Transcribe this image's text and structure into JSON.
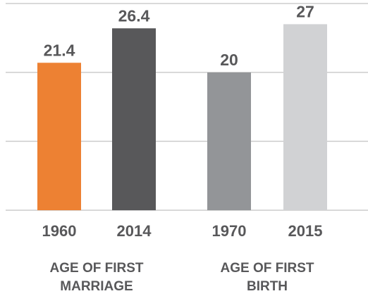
{
  "chart_data": {
    "type": "bar",
    "categories": [
      "1960",
      "2014",
      "1970",
      "2015"
    ],
    "values": [
      21.4,
      26.4,
      20,
      27
    ],
    "colors": [
      "#ed8133",
      "#58585a",
      "#939598",
      "#d1d2d4"
    ],
    "group_labels": [
      "AGE OF FIRST MARRIAGE",
      "AGE OF FIRST BIRTH"
    ],
    "ylim": [
      0,
      30
    ],
    "yticks": [
      0,
      10,
      20,
      30
    ],
    "grid": true
  }
}
